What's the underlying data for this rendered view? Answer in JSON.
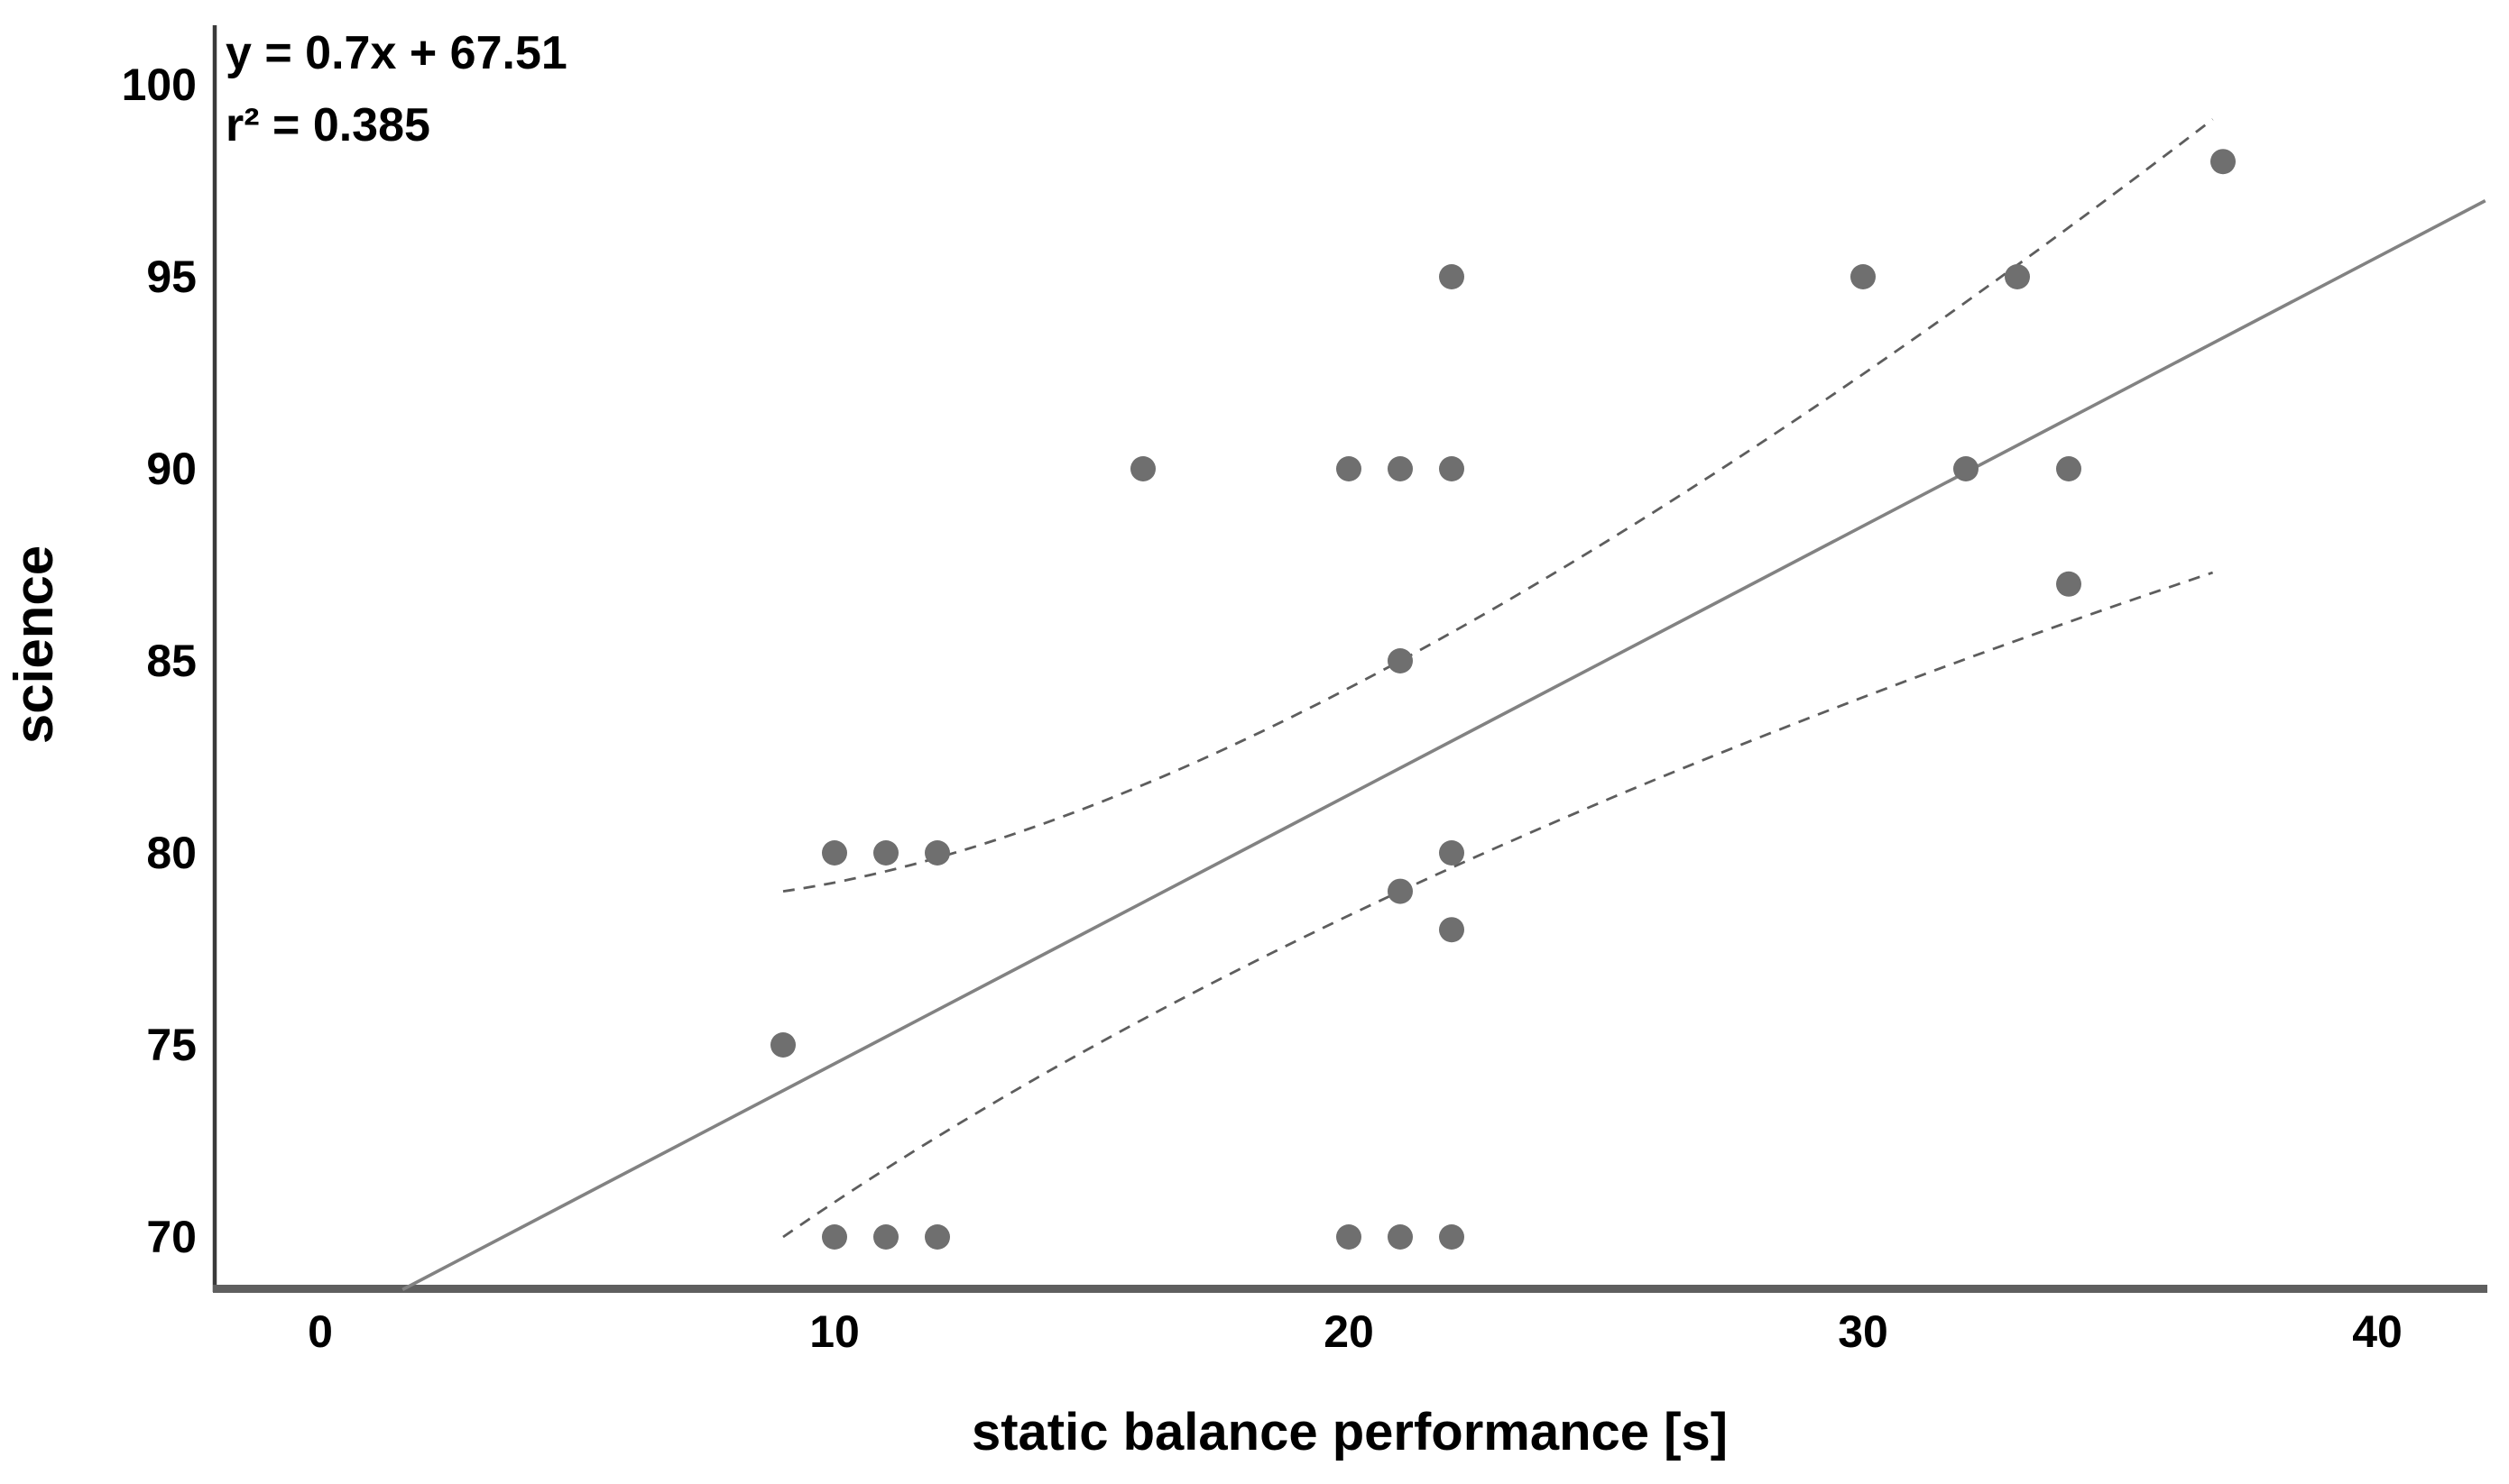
{
  "chart_data": {
    "type": "scatter",
    "title": "",
    "xlabel": "static balance performance [s]",
    "ylabel": "science",
    "annotation": {
      "equation": "y = 0.7x + 67.51",
      "r_squared": "r² = 0.385"
    },
    "x_ticks": [
      0,
      10,
      20,
      30,
      40
    ],
    "y_ticks": [
      70,
      75,
      80,
      85,
      90,
      95,
      100
    ],
    "xlim": [
      -1.7,
      42.2
    ],
    "ylim": [
      68.6,
      101.5
    ],
    "grid": "off",
    "legend": "none",
    "points": [
      [
        9,
        75
      ],
      [
        10,
        70
      ],
      [
        10,
        80
      ],
      [
        11,
        70
      ],
      [
        11,
        80
      ],
      [
        12,
        70
      ],
      [
        12,
        80
      ],
      [
        16,
        90
      ],
      [
        20,
        70
      ],
      [
        20,
        90
      ],
      [
        21,
        70
      ],
      [
        21,
        79
      ],
      [
        21,
        85
      ],
      [
        21,
        90
      ],
      [
        22,
        70
      ],
      [
        22,
        78
      ],
      [
        22,
        80
      ],
      [
        22,
        90
      ],
      [
        22,
        95
      ],
      [
        30,
        95
      ],
      [
        32,
        90
      ],
      [
        33,
        95
      ],
      [
        34,
        87
      ],
      [
        34,
        90
      ],
      [
        37,
        98
      ]
    ],
    "regression_line": {
      "slope": 0.7,
      "intercept": 67.51,
      "x_start": 1.6,
      "x_end": 42.1,
      "style": "solid"
    },
    "confidence_bands": {
      "upper": {
        "start": [
          9,
          79.0
        ],
        "mid": [
          21,
          85.0
        ],
        "end": [
          36.8,
          99.1
        ],
        "style": "dashed"
      },
      "lower": {
        "start": [
          9,
          70.0
        ],
        "mid": [
          21,
          79.0
        ],
        "end": [
          36.8,
          87.3
        ],
        "style": "dashed"
      }
    },
    "colors": {
      "point": "#6f6f6f",
      "regression_line": "#828282",
      "confidence_band": "#5d5d5d",
      "x_axis_line": "#5f5f5f",
      "y_axis_line": "#3a3a3a",
      "text": "#000000",
      "background": "#ffffff"
    }
  }
}
